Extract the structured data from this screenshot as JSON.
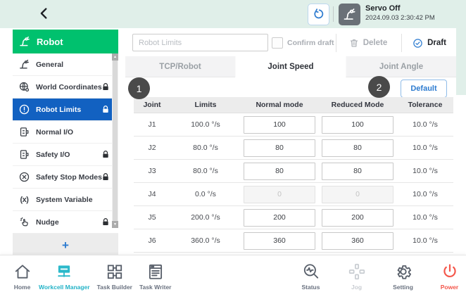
{
  "topbar": {
    "servo_status": "Servo Off",
    "timestamp": "2024.09.03 2:30:42 PM",
    "back_icon": "chevron-left-icon",
    "reset_icon": "servo-reset-icon",
    "robot_icon": "robot-arm-icon"
  },
  "sidebar": {
    "title": "Robot",
    "title_icon": "robot-arm-icon",
    "add_label": "+",
    "items": [
      {
        "label": "General",
        "icon": "robot-arm-icon",
        "locked": false,
        "active": false
      },
      {
        "label": "World Coordinates",
        "icon": "globe-gear-icon",
        "locked": true,
        "active": false
      },
      {
        "label": "Robot Limits",
        "icon": "alert-circle-icon",
        "locked": true,
        "active": true
      },
      {
        "label": "Normal I/O",
        "icon": "io-port-icon",
        "locked": false,
        "active": false
      },
      {
        "label": "Safety I/O",
        "icon": "io-port-icon",
        "locked": true,
        "active": false
      },
      {
        "label": "Safety Stop Modes",
        "icon": "x-circle-icon",
        "locked": true,
        "active": false
      },
      {
        "label": "System Variable",
        "icon": "variable-icon",
        "locked": false,
        "active": false
      },
      {
        "label": "Nudge",
        "icon": "nudge-hand-icon",
        "locked": true,
        "active": false
      }
    ]
  },
  "header": {
    "name_placeholder": "Robot Limits",
    "confirm_draft_label": "Confirm draft",
    "delete_label": "Delete",
    "draft_label": "Draft"
  },
  "tabs": [
    {
      "label": "TCP/Robot",
      "active": false
    },
    {
      "label": "Joint Speed",
      "active": true
    },
    {
      "label": "Joint Angle",
      "active": false
    }
  ],
  "content": {
    "badge1": "1",
    "badge2": "2",
    "default_button_label": "Default",
    "table": {
      "columns": [
        "Joint",
        "Limits",
        "Normal mode",
        "Reduced Mode",
        "Tolerance"
      ],
      "rows": [
        {
          "joint": "J1",
          "limit": "100.0 °/s",
          "normal": "100",
          "reduced": "100",
          "tolerance": "10.0 °/s",
          "disabled": false
        },
        {
          "joint": "J2",
          "limit": "80.0 °/s",
          "normal": "80",
          "reduced": "80",
          "tolerance": "10.0 °/s",
          "disabled": false
        },
        {
          "joint": "J3",
          "limit": "80.0 °/s",
          "normal": "80",
          "reduced": "80",
          "tolerance": "10.0 °/s",
          "disabled": false
        },
        {
          "joint": "J4",
          "limit": "0.0 °/s",
          "normal": "0",
          "reduced": "0",
          "tolerance": "10.0 °/s",
          "disabled": true
        },
        {
          "joint": "J5",
          "limit": "200.0 °/s",
          "normal": "200",
          "reduced": "200",
          "tolerance": "10.0 °/s",
          "disabled": false
        },
        {
          "joint": "J6",
          "limit": "360.0 °/s",
          "normal": "360",
          "reduced": "360",
          "tolerance": "10.0 °/s",
          "disabled": false
        }
      ]
    }
  },
  "bottombar": {
    "left": [
      {
        "label": "Home",
        "icon": "home-icon",
        "state": "normal"
      },
      {
        "label": "Workcell Manager",
        "icon": "workcell-manager-icon",
        "state": "active"
      },
      {
        "label": "Task Builder",
        "icon": "task-builder-icon",
        "state": "normal"
      },
      {
        "label": "Task Writer",
        "icon": "task-writer-icon",
        "state": "normal"
      }
    ],
    "right": [
      {
        "label": "Status",
        "icon": "status-icon",
        "state": "normal"
      },
      {
        "label": "Jog",
        "icon": "jog-icon",
        "state": "disabled"
      },
      {
        "label": "Setting",
        "icon": "setting-icon",
        "state": "normal"
      },
      {
        "label": "Power",
        "icon": "power-icon",
        "state": "power"
      }
    ]
  },
  "colors": {
    "brand_green": "#00c16e",
    "active_blue": "#1261c1",
    "accent_blue": "#2e7cd0",
    "active_cyan": "#2cb9ca",
    "power_red": "#f4564a",
    "topbar_mint": "#e0efe9",
    "badge_gray": "#4a4a4a"
  }
}
